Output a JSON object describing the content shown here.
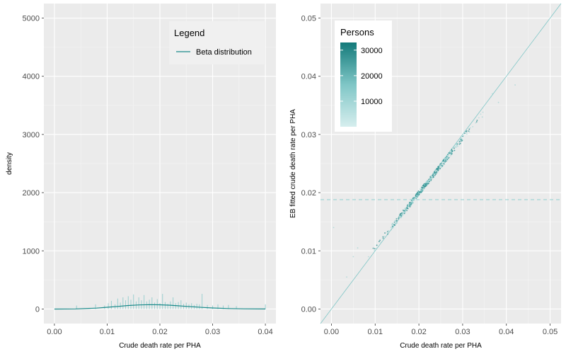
{
  "chart_data": [
    {
      "type": "bar",
      "xlabel": "Crude death rate per PHA",
      "ylabel": "density",
      "xlim": [
        -0.002,
        0.042
      ],
      "ylim": [
        -250,
        5250
      ],
      "x_ticks": [
        "0.00",
        "0.01",
        "0.02",
        "0.03",
        "0.04"
      ],
      "y_ticks": [
        "0",
        "1000",
        "2000",
        "3000",
        "4000",
        "5000"
      ],
      "x_tick_values": [
        0,
        0.01,
        0.02,
        0.03,
        0.04
      ],
      "y_tick_values": [
        0,
        1000,
        2000,
        3000,
        4000,
        5000
      ],
      "grid": true,
      "legend": {
        "title": "Legend",
        "entries": [
          "Beta distribution"
        ],
        "placement": "top-right"
      },
      "bars": [
        {
          "x": 0.0042,
          "y": 60
        },
        {
          "x": 0.0078,
          "y": 80
        },
        {
          "x": 0.0095,
          "y": 60
        },
        {
          "x": 0.0102,
          "y": 100
        },
        {
          "x": 0.0108,
          "y": 140
        },
        {
          "x": 0.0115,
          "y": 80
        },
        {
          "x": 0.012,
          "y": 180
        },
        {
          "x": 0.0125,
          "y": 110
        },
        {
          "x": 0.013,
          "y": 200
        },
        {
          "x": 0.0135,
          "y": 150
        },
        {
          "x": 0.014,
          "y": 220
        },
        {
          "x": 0.0145,
          "y": 160
        },
        {
          "x": 0.015,
          "y": 250
        },
        {
          "x": 0.0155,
          "y": 130
        },
        {
          "x": 0.016,
          "y": 200
        },
        {
          "x": 0.0165,
          "y": 150
        },
        {
          "x": 0.017,
          "y": 240
        },
        {
          "x": 0.0175,
          "y": 130
        },
        {
          "x": 0.018,
          "y": 160
        },
        {
          "x": 0.0185,
          "y": 200
        },
        {
          "x": 0.019,
          "y": 110
        },
        {
          "x": 0.0195,
          "y": 170
        },
        {
          "x": 0.02,
          "y": 100
        },
        {
          "x": 0.0205,
          "y": 260
        },
        {
          "x": 0.021,
          "y": 120
        },
        {
          "x": 0.0215,
          "y": 90
        },
        {
          "x": 0.022,
          "y": 130
        },
        {
          "x": 0.0225,
          "y": 200
        },
        {
          "x": 0.023,
          "y": 100
        },
        {
          "x": 0.0235,
          "y": 120
        },
        {
          "x": 0.024,
          "y": 150
        },
        {
          "x": 0.0245,
          "y": 90
        },
        {
          "x": 0.025,
          "y": 110
        },
        {
          "x": 0.0255,
          "y": 80
        },
        {
          "x": 0.026,
          "y": 100
        },
        {
          "x": 0.0265,
          "y": 70
        },
        {
          "x": 0.027,
          "y": 90
        },
        {
          "x": 0.0275,
          "y": 80
        },
        {
          "x": 0.028,
          "y": 260
        },
        {
          "x": 0.029,
          "y": 70
        },
        {
          "x": 0.03,
          "y": 60
        },
        {
          "x": 0.031,
          "y": 80
        },
        {
          "x": 0.032,
          "y": 60
        },
        {
          "x": 0.033,
          "y": 70
        },
        {
          "x": 0.0345,
          "y": 50
        },
        {
          "x": 0.04,
          "y": 80
        }
      ],
      "beta_curve": {
        "name": "Beta distribution",
        "x": [
          0,
          0.004,
          0.008,
          0.01,
          0.012,
          0.014,
          0.016,
          0.018,
          0.02,
          0.022,
          0.024,
          0.026,
          0.028,
          0.03,
          0.033,
          0.036,
          0.04
        ],
        "y": [
          0,
          2,
          15,
          30,
          45,
          60,
          70,
          75,
          72,
          65,
          52,
          40,
          28,
          18,
          8,
          3,
          1
        ]
      }
    },
    {
      "type": "scatter",
      "xlabel": "Crude death rate per PHA",
      "ylabel": "EB fitted crude death rate per PHA",
      "xlim": [
        -0.0025,
        0.0525
      ],
      "ylim": [
        -0.0025,
        0.0525
      ],
      "x_ticks": [
        "0.00",
        "0.01",
        "0.02",
        "0.03",
        "0.04",
        "0.05"
      ],
      "y_ticks": [
        "0.00",
        "0.01",
        "0.02",
        "0.03",
        "0.04",
        "0.05"
      ],
      "x_tick_values": [
        0,
        0.01,
        0.02,
        0.03,
        0.04,
        0.05
      ],
      "y_tick_values": [
        0,
        0.01,
        0.02,
        0.03,
        0.04,
        0.05
      ],
      "grid": true,
      "reference_lines": {
        "identity": true,
        "horizontal_mean": 0.0188
      },
      "legend": {
        "title": "Persons",
        "labels": [
          "30000",
          "20000",
          "10000"
        ],
        "label_values": [
          30000,
          20000,
          10000
        ],
        "range": [
          0,
          33000
        ],
        "placement": "top-left"
      },
      "point_count": 520,
      "point_range": [
        0.0075,
        0.036
      ],
      "outliers": [
        {
          "x": 0.0035,
          "y": 0.0055
        },
        {
          "x": 0.005,
          "y": 0.009
        },
        {
          "x": 0.0365,
          "y": 0.0365
        },
        {
          "x": 0.0368,
          "y": 0.037
        },
        {
          "x": 0.0382,
          "y": 0.0355
        },
        {
          "x": 0.042,
          "y": 0.0385
        },
        {
          "x": 0.033,
          "y": 0.032
        },
        {
          "x": 0.0345,
          "y": 0.033
        },
        {
          "x": 0.0005,
          "y": 0.014
        },
        {
          "x": 0.006,
          "y": 0.0105
        }
      ]
    }
  ],
  "colors": {
    "teal": "#1a8a8a",
    "teal_light": "#7fc6c6",
    "panel_bg": "#ebebeb",
    "grid": "#ffffff",
    "hline": "#8fcfcf"
  }
}
